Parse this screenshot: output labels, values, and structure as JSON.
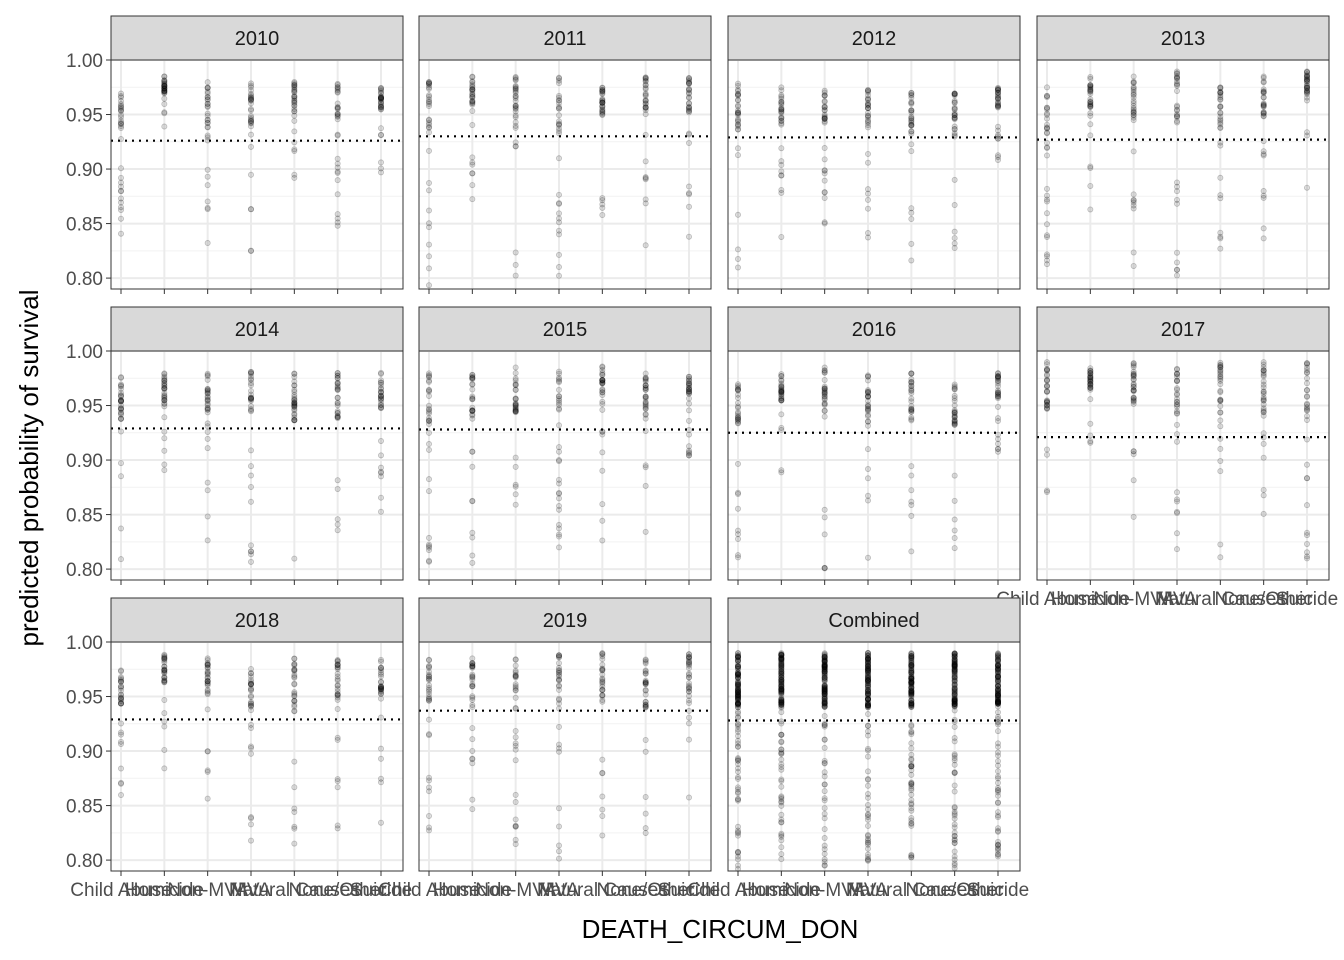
{
  "chart_data": {
    "type": "scatter",
    "xlabel": "DEATH_CIRCUM_DON",
    "ylabel": "predicted probability of survival",
    "categories": [
      "Child Abuse",
      "Homicide",
      "Non-MVA",
      "MVA",
      "Natural Causes",
      "None/Other",
      "Suicide"
    ],
    "ylim": [
      0.79,
      1.0
    ],
    "yticks": [
      "0.80",
      "0.85",
      "0.90",
      "0.95",
      "1.00"
    ],
    "grid": true,
    "point_opacity": 0.15,
    "panels": [
      {
        "label": "2010",
        "reference_line": 0.926,
        "points": [
          [
            0.84,
            0.97
          ],
          [
            0.92,
            0.985
          ],
          [
            0.81,
            0.98
          ],
          [
            0.82,
            0.98
          ],
          [
            0.87,
            0.98
          ],
          [
            0.84,
            0.98
          ],
          [
            0.89,
            0.975
          ]
        ]
      },
      {
        "label": "2011",
        "reference_line": 0.93,
        "points": [
          [
            0.79,
            0.98
          ],
          [
            0.87,
            0.985
          ],
          [
            0.8,
            0.99
          ],
          [
            0.8,
            0.985
          ],
          [
            0.85,
            0.98
          ],
          [
            0.83,
            0.985
          ],
          [
            0.835,
            0.985
          ]
        ]
      },
      {
        "label": "2012",
        "reference_line": 0.929,
        "points": [
          [
            0.8,
            0.98
          ],
          [
            0.83,
            0.975
          ],
          [
            0.84,
            0.975
          ],
          [
            0.83,
            0.975
          ],
          [
            0.815,
            0.97
          ],
          [
            0.8,
            0.97
          ],
          [
            0.905,
            0.975
          ]
        ]
      },
      {
        "label": "2013",
        "reference_line": 0.927,
        "points": [
          [
            0.81,
            0.975
          ],
          [
            0.86,
            0.985
          ],
          [
            0.81,
            0.985
          ],
          [
            0.8,
            0.99
          ],
          [
            0.82,
            0.975
          ],
          [
            0.83,
            0.985
          ],
          [
            0.88,
            0.99
          ]
        ]
      },
      {
        "label": "2014",
        "reference_line": 0.929,
        "points": [
          [
            0.8,
            0.98
          ],
          [
            0.865,
            0.98
          ],
          [
            0.81,
            0.985
          ],
          [
            0.8,
            0.985
          ],
          [
            0.805,
            0.98
          ],
          [
            0.81,
            0.98
          ],
          [
            0.845,
            0.98
          ]
        ]
      },
      {
        "label": "2015",
        "reference_line": 0.928,
        "points": [
          [
            0.8,
            0.98
          ],
          [
            0.805,
            0.98
          ],
          [
            0.82,
            0.985
          ],
          [
            0.81,
            0.985
          ],
          [
            0.81,
            0.99
          ],
          [
            0.81,
            0.98
          ],
          [
            0.9,
            0.98
          ]
        ]
      },
      {
        "label": "2016",
        "reference_line": 0.925,
        "points": [
          [
            0.81,
            0.975
          ],
          [
            0.875,
            0.98
          ],
          [
            0.8,
            0.985
          ],
          [
            0.8,
            0.98
          ],
          [
            0.8,
            0.98
          ],
          [
            0.81,
            0.97
          ],
          [
            0.89,
            0.98
          ]
        ]
      },
      {
        "label": "2017",
        "reference_line": 0.921,
        "points": [
          [
            0.81,
            0.99
          ],
          [
            0.9,
            0.985
          ],
          [
            0.835,
            0.99
          ],
          [
            0.81,
            0.985
          ],
          [
            0.8,
            0.99
          ],
          [
            0.805,
            0.99
          ],
          [
            0.8,
            0.99
          ]
        ]
      },
      {
        "label": "2018",
        "reference_line": 0.929,
        "points": [
          [
            0.83,
            0.975
          ],
          [
            0.88,
            0.99
          ],
          [
            0.85,
            0.985
          ],
          [
            0.8,
            0.98
          ],
          [
            0.79,
            0.985
          ],
          [
            0.825,
            0.985
          ],
          [
            0.825,
            0.985
          ]
        ]
      },
      {
        "label": "2019",
        "reference_line": 0.937,
        "points": [
          [
            0.825,
            0.985
          ],
          [
            0.84,
            0.985
          ],
          [
            0.805,
            0.99
          ],
          [
            0.8,
            0.99
          ],
          [
            0.8,
            0.99
          ],
          [
            0.79,
            0.985
          ],
          [
            0.845,
            0.99
          ]
        ]
      },
      {
        "label": "Combined",
        "reference_line": 0.928,
        "points": [
          [
            0.79,
            0.99
          ],
          [
            0.8,
            0.99
          ],
          [
            0.79,
            0.99
          ],
          [
            0.79,
            0.99
          ],
          [
            0.79,
            0.99
          ],
          [
            0.79,
            0.99
          ],
          [
            0.8,
            0.99
          ]
        ]
      }
    ]
  },
  "style": {
    "strip_fill": "#d9d9d9",
    "panel_border": "#333333",
    "grid_major": "#ebebeb",
    "grid_minor": "#f2f2f2",
    "point_color": "#000000",
    "reference_line_color": "#000000"
  }
}
